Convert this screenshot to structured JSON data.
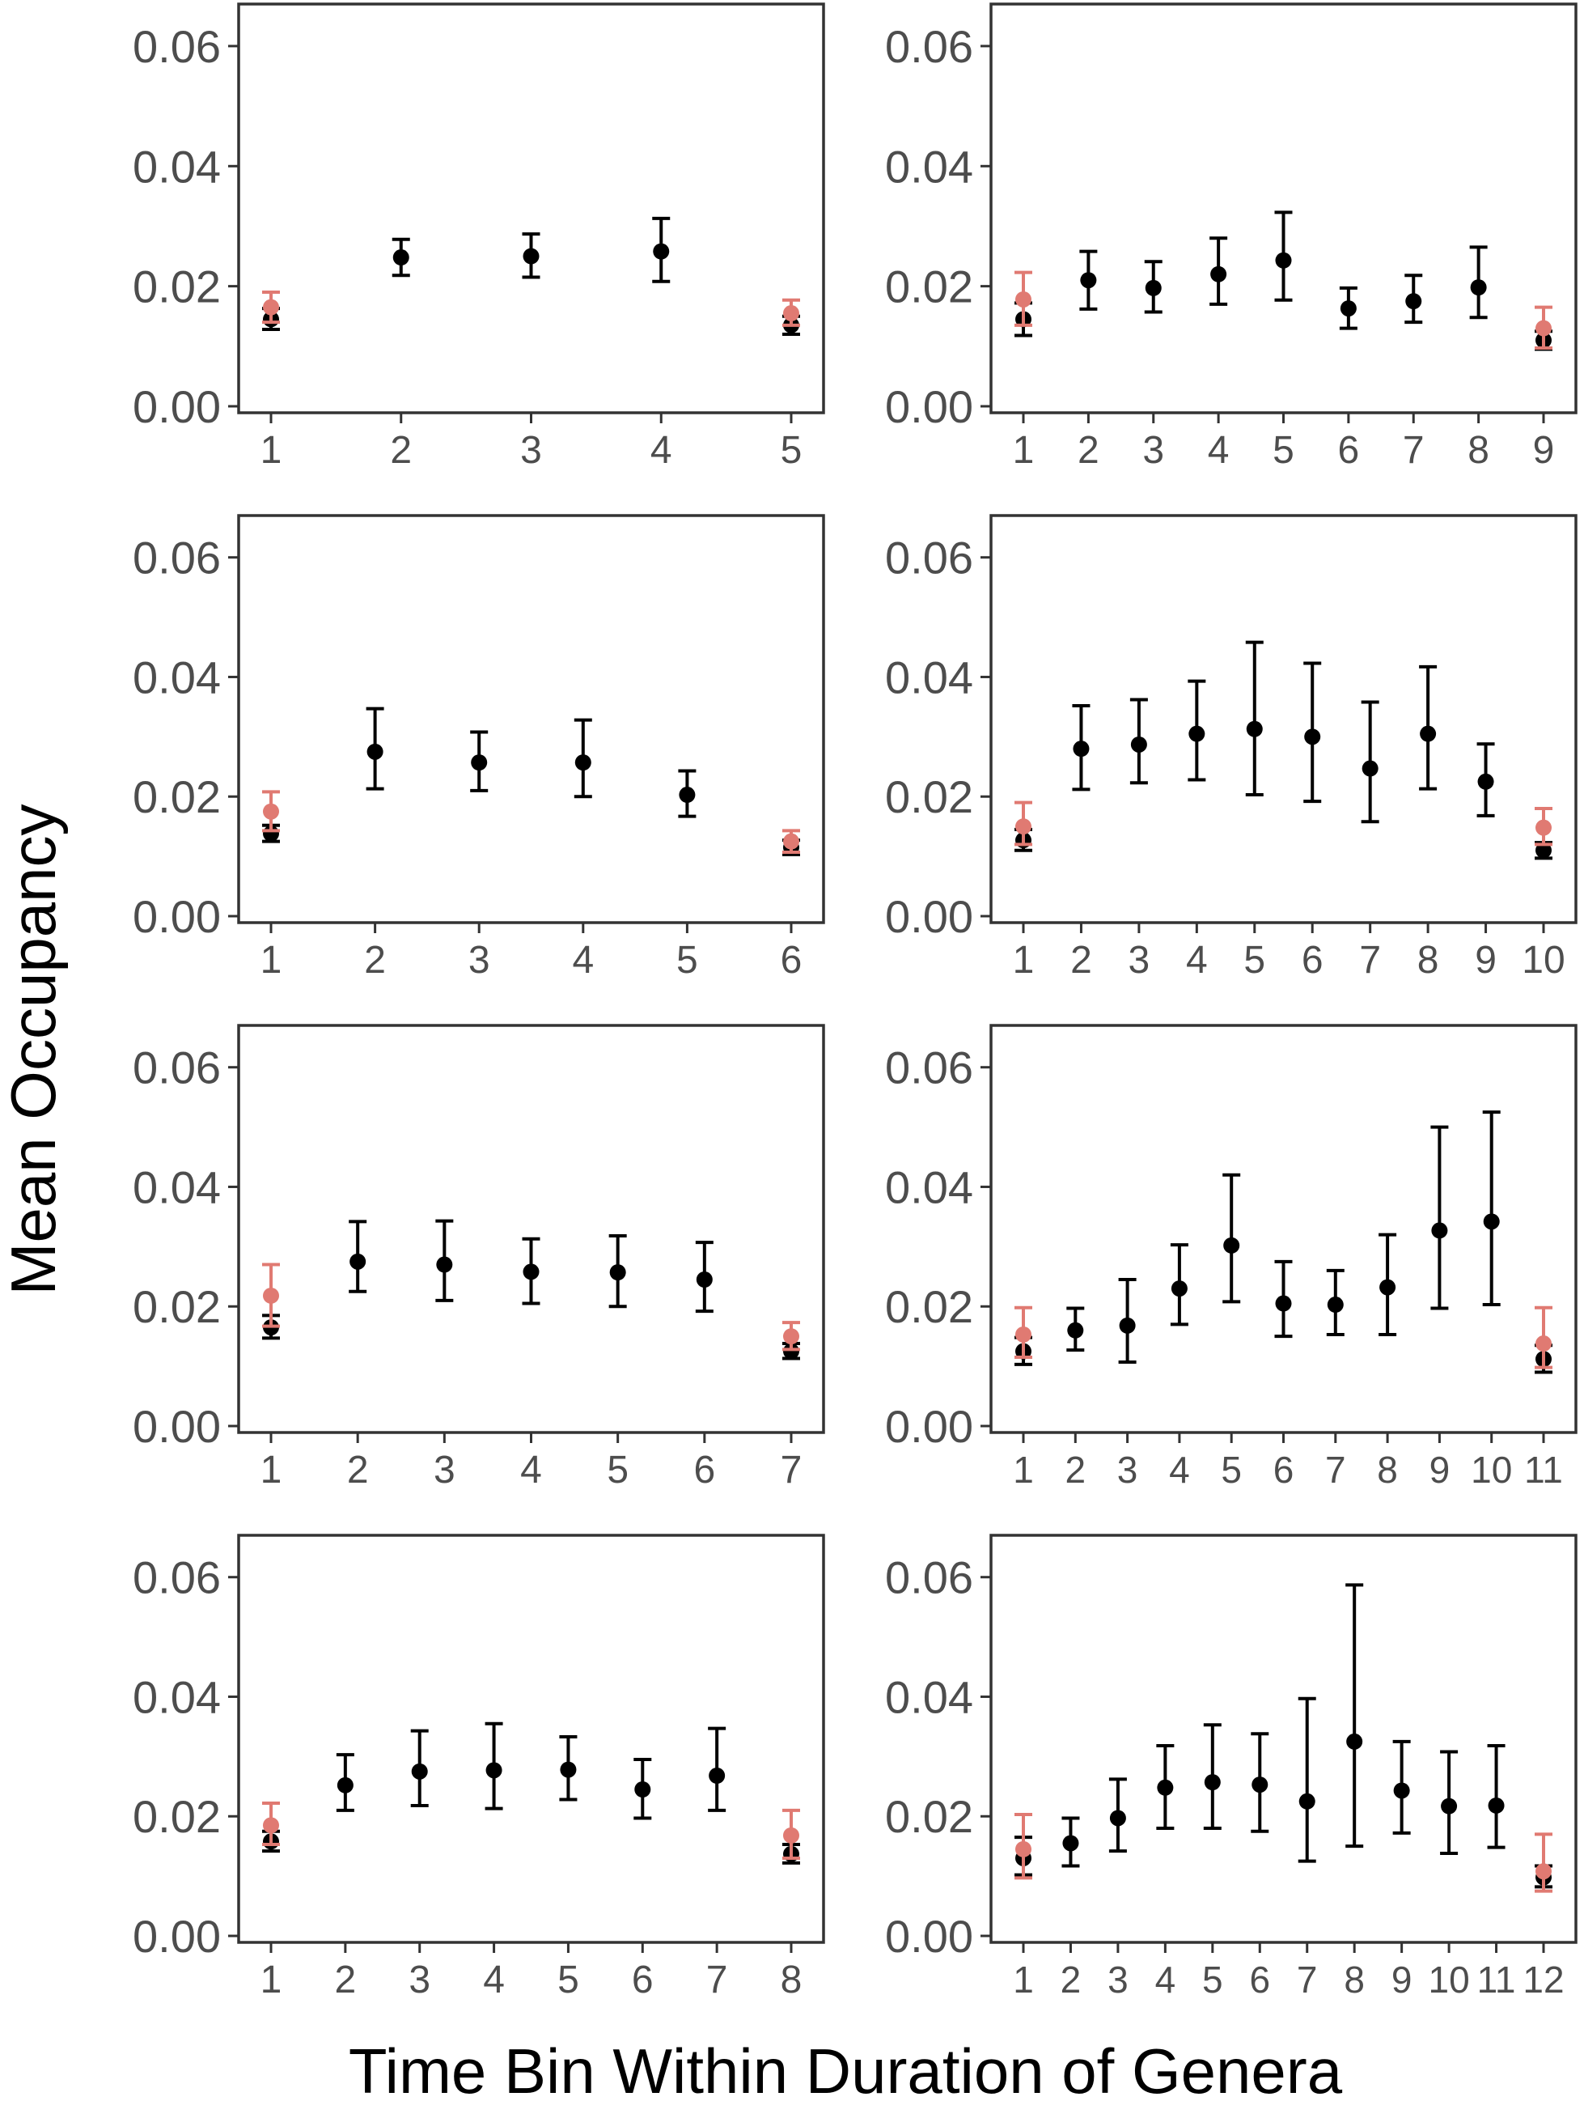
{
  "ylabel": "Mean Occupancy",
  "xlabel": "Time Bin Within Duration of Genera",
  "colors": {
    "main": "#000000",
    "highlight": "#E07A72",
    "frame": "#333333",
    "tick_text": "#4d4d4d"
  },
  "chart_data": [
    {
      "type": "scatter",
      "ylim": [
        0,
        0.067
      ],
      "yticks": [
        "0.00",
        "0.02",
        "0.04",
        "0.06"
      ],
      "categories": [
        "1",
        "2",
        "3",
        "4",
        "5"
      ],
      "series": [
        {
          "values": [
            0.0145,
            0.0248,
            0.025,
            0.0258,
            0.0135
          ],
          "lower": [
            0.0128,
            0.0218,
            0.0215,
            0.0208,
            0.012
          ],
          "upper": [
            0.0163,
            0.0278,
            0.0287,
            0.0313,
            0.015
          ]
        },
        {
          "values": [
            0.0165,
            null,
            null,
            null,
            0.0155
          ],
          "lower": [
            0.014,
            null,
            null,
            null,
            0.0135
          ],
          "upper": [
            0.019,
            null,
            null,
            null,
            0.0177
          ]
        }
      ]
    },
    {
      "type": "scatter",
      "ylim": [
        0,
        0.067
      ],
      "yticks": [
        "0.00",
        "0.02",
        "0.04",
        "0.06"
      ],
      "categories": [
        "1",
        "2",
        "3",
        "4",
        "5",
        "6",
        "7",
        "8",
        "9"
      ],
      "series": [
        {
          "values": [
            0.0145,
            0.021,
            0.0197,
            0.022,
            0.0243,
            0.0163,
            0.0175,
            0.0198,
            0.011
          ],
          "lower": [
            0.0118,
            0.0162,
            0.0157,
            0.017,
            0.0177,
            0.013,
            0.014,
            0.0148,
            0.0095
          ],
          "upper": [
            0.0172,
            0.0258,
            0.0241,
            0.028,
            0.0323,
            0.0197,
            0.0218,
            0.0265,
            0.0125
          ]
        },
        {
          "values": [
            0.0178,
            null,
            null,
            null,
            null,
            null,
            null,
            null,
            0.013
          ],
          "lower": [
            0.0135,
            null,
            null,
            null,
            null,
            null,
            null,
            null,
            0.0097
          ],
          "upper": [
            0.0223,
            null,
            null,
            null,
            null,
            null,
            null,
            null,
            0.0165
          ]
        }
      ]
    },
    {
      "type": "scatter",
      "ylim": [
        0,
        0.067
      ],
      "yticks": [
        "0.00",
        "0.02",
        "0.04",
        "0.06"
      ],
      "categories": [
        "1",
        "2",
        "3",
        "4",
        "5",
        "6"
      ],
      "series": [
        {
          "values": [
            0.0138,
            0.0275,
            0.0257,
            0.0257,
            0.0203,
            0.0115
          ],
          "lower": [
            0.0125,
            0.0213,
            0.021,
            0.02,
            0.0167,
            0.0103
          ],
          "upper": [
            0.0152,
            0.0347,
            0.0308,
            0.0328,
            0.0243,
            0.0127
          ]
        },
        {
          "values": [
            0.0175,
            null,
            null,
            null,
            null,
            0.0125
          ],
          "lower": [
            0.0143,
            null,
            null,
            null,
            null,
            0.0107
          ],
          "upper": [
            0.0208,
            null,
            null,
            null,
            null,
            0.0143
          ]
        }
      ]
    },
    {
      "type": "scatter",
      "ylim": [
        0,
        0.067
      ],
      "yticks": [
        "0.00",
        "0.02",
        "0.04",
        "0.06"
      ],
      "categories": [
        "1",
        "2",
        "3",
        "4",
        "5",
        "6",
        "7",
        "8",
        "9",
        "10"
      ],
      "series": [
        {
          "values": [
            0.0127,
            0.028,
            0.0287,
            0.0305,
            0.0313,
            0.03,
            0.0247,
            0.0305,
            0.0225,
            0.011
          ],
          "lower": [
            0.011,
            0.0212,
            0.0223,
            0.0228,
            0.0203,
            0.0192,
            0.0158,
            0.0213,
            0.0168,
            0.0097
          ],
          "upper": [
            0.0145,
            0.0352,
            0.0362,
            0.0393,
            0.0458,
            0.0423,
            0.0358,
            0.0417,
            0.0288,
            0.0123
          ]
        },
        {
          "values": [
            0.015,
            null,
            null,
            null,
            null,
            null,
            null,
            null,
            null,
            0.0148
          ],
          "lower": [
            0.012,
            null,
            null,
            null,
            null,
            null,
            null,
            null,
            null,
            0.012
          ],
          "upper": [
            0.019,
            null,
            null,
            null,
            null,
            null,
            null,
            null,
            null,
            0.018
          ]
        }
      ]
    },
    {
      "type": "scatter",
      "ylim": [
        0,
        0.067
      ],
      "yticks": [
        "0.00",
        "0.02",
        "0.04",
        "0.06"
      ],
      "categories": [
        "1",
        "2",
        "3",
        "4",
        "5",
        "6",
        "7"
      ],
      "series": [
        {
          "values": [
            0.0165,
            0.0275,
            0.027,
            0.0258,
            0.0257,
            0.0245,
            0.0125
          ],
          "lower": [
            0.0147,
            0.0225,
            0.021,
            0.0205,
            0.02,
            0.0192,
            0.0113
          ],
          "upper": [
            0.0185,
            0.0342,
            0.0343,
            0.0313,
            0.0318,
            0.0307,
            0.0138
          ]
        },
        {
          "values": [
            0.0218,
            null,
            null,
            null,
            null,
            null,
            0.015
          ],
          "lower": [
            0.0167,
            null,
            null,
            null,
            null,
            null,
            0.0128
          ],
          "upper": [
            0.027,
            null,
            null,
            null,
            null,
            null,
            0.0173
          ]
        }
      ]
    },
    {
      "type": "scatter",
      "ylim": [
        0,
        0.067
      ],
      "yticks": [
        "0.00",
        "0.02",
        "0.04",
        "0.06"
      ],
      "categories": [
        "1",
        "2",
        "3",
        "4",
        "5",
        "6",
        "7",
        "8",
        "9",
        "10",
        "11"
      ],
      "series": [
        {
          "values": [
            0.0125,
            0.016,
            0.0168,
            0.023,
            0.0302,
            0.0205,
            0.0203,
            0.0232,
            0.0327,
            0.0342,
            0.0112
          ],
          "lower": [
            0.0103,
            0.0127,
            0.0107,
            0.017,
            0.0208,
            0.015,
            0.0153,
            0.0153,
            0.0197,
            0.0203,
            0.009
          ],
          "upper": [
            0.0148,
            0.0197,
            0.0245,
            0.0303,
            0.042,
            0.0275,
            0.026,
            0.032,
            0.05,
            0.0525,
            0.0135
          ]
        },
        {
          "values": [
            0.0153,
            null,
            null,
            null,
            null,
            null,
            null,
            null,
            null,
            null,
            0.0138
          ],
          "lower": [
            0.0115,
            null,
            null,
            null,
            null,
            null,
            null,
            null,
            null,
            null,
            0.0098
          ],
          "upper": [
            0.0198,
            null,
            null,
            null,
            null,
            null,
            null,
            null,
            null,
            null,
            0.0198
          ]
        }
      ]
    },
    {
      "type": "scatter",
      "ylim": [
        0,
        0.067
      ],
      "yticks": [
        "0.00",
        "0.02",
        "0.04",
        "0.06"
      ],
      "categories": [
        "1",
        "2",
        "3",
        "4",
        "5",
        "6",
        "7",
        "8"
      ],
      "series": [
        {
          "values": [
            0.0158,
            0.0252,
            0.0275,
            0.0277,
            0.0278,
            0.0245,
            0.0268,
            0.0137
          ],
          "lower": [
            0.0142,
            0.021,
            0.0218,
            0.0213,
            0.0228,
            0.0197,
            0.021,
            0.0122
          ],
          "upper": [
            0.0175,
            0.0303,
            0.0343,
            0.0355,
            0.0333,
            0.0295,
            0.0347,
            0.0153
          ]
        },
        {
          "values": [
            0.0185,
            null,
            null,
            null,
            null,
            null,
            null,
            0.0168
          ],
          "lower": [
            0.0153,
            null,
            null,
            null,
            null,
            null,
            null,
            0.013
          ],
          "upper": [
            0.0222,
            null,
            null,
            null,
            null,
            null,
            null,
            0.021
          ]
        }
      ]
    },
    {
      "type": "scatter",
      "ylim": [
        0,
        0.067
      ],
      "yticks": [
        "0.00",
        "0.02",
        "0.04",
        "0.06"
      ],
      "categories": [
        "1",
        "2",
        "3",
        "4",
        "5",
        "6",
        "7",
        "8",
        "9",
        "10",
        "11",
        "12"
      ],
      "series": [
        {
          "values": [
            0.013,
            0.0155,
            0.0197,
            0.0248,
            0.0257,
            0.0253,
            0.0225,
            0.0325,
            0.0243,
            0.0217,
            0.0218,
            0.0098
          ],
          "lower": [
            0.0102,
            0.0117,
            0.0142,
            0.018,
            0.018,
            0.0175,
            0.0125,
            0.015,
            0.0172,
            0.0138,
            0.0148,
            0.0082
          ],
          "upper": [
            0.0165,
            0.0197,
            0.0262,
            0.0318,
            0.0353,
            0.0338,
            0.0397,
            0.0587,
            0.0325,
            0.0308,
            0.0318,
            0.0117
          ]
        },
        {
          "values": [
            0.0145,
            null,
            null,
            null,
            null,
            null,
            null,
            null,
            null,
            null,
            null,
            0.0108
          ],
          "lower": [
            0.0097,
            null,
            null,
            null,
            null,
            null,
            null,
            null,
            null,
            null,
            null,
            0.0075
          ],
          "upper": [
            0.0203,
            null,
            null,
            null,
            null,
            null,
            null,
            null,
            null,
            null,
            null,
            0.017
          ]
        }
      ]
    }
  ]
}
